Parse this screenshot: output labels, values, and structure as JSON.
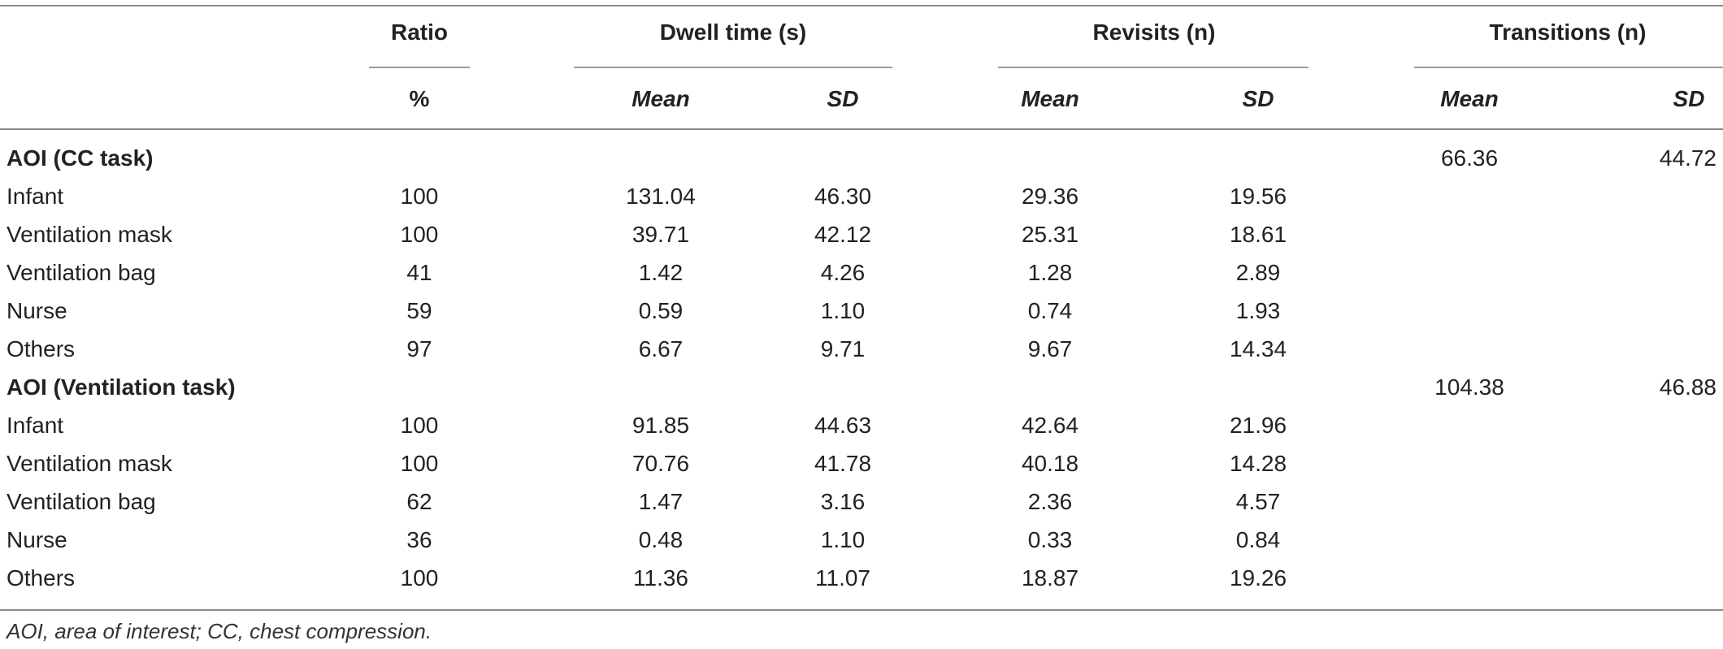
{
  "header": {
    "groups": [
      "Ratio",
      "Dwell time (s)",
      "Revisits (n)",
      "Transitions (n)"
    ],
    "subheaders": [
      "%",
      "Mean",
      "SD",
      "Mean",
      "SD",
      "Mean",
      "SD"
    ]
  },
  "sections": [
    {
      "title": "AOI (CC task)",
      "transitions": {
        "mean": "66.36",
        "sd": "44.72"
      },
      "rows": [
        {
          "label": "Infant",
          "ratio": "100",
          "dwell_mean": "131.04",
          "dwell_sd": "46.30",
          "revisits_mean": "29.36",
          "revisits_sd": "19.56"
        },
        {
          "label": "Ventilation mask",
          "ratio": "100",
          "dwell_mean": "39.71",
          "dwell_sd": "42.12",
          "revisits_mean": "25.31",
          "revisits_sd": "18.61"
        },
        {
          "label": "Ventilation bag",
          "ratio": "41",
          "dwell_mean": "1.42",
          "dwell_sd": "4.26",
          "revisits_mean": "1.28",
          "revisits_sd": "2.89"
        },
        {
          "label": "Nurse",
          "ratio": "59",
          "dwell_mean": "0.59",
          "dwell_sd": "1.10",
          "revisits_mean": "0.74",
          "revisits_sd": "1.93"
        },
        {
          "label": "Others",
          "ratio": "97",
          "dwell_mean": "6.67",
          "dwell_sd": "9.71",
          "revisits_mean": "9.67",
          "revisits_sd": "14.34"
        }
      ]
    },
    {
      "title": "AOI (Ventilation task)",
      "transitions": {
        "mean": "104.38",
        "sd": "46.88"
      },
      "rows": [
        {
          "label": "Infant",
          "ratio": "100",
          "dwell_mean": "91.85",
          "dwell_sd": "44.63",
          "revisits_mean": "42.64",
          "revisits_sd": "21.96"
        },
        {
          "label": "Ventilation mask",
          "ratio": "100",
          "dwell_mean": "70.76",
          "dwell_sd": "41.78",
          "revisits_mean": "40.18",
          "revisits_sd": "14.28"
        },
        {
          "label": "Ventilation bag",
          "ratio": "62",
          "dwell_mean": "1.47",
          "dwell_sd": "3.16",
          "revisits_mean": "2.36",
          "revisits_sd": "4.57"
        },
        {
          "label": "Nurse",
          "ratio": "36",
          "dwell_mean": "0.48",
          "dwell_sd": "1.10",
          "revisits_mean": "0.33",
          "revisits_sd": "0.84"
        },
        {
          "label": "Others",
          "ratio": "100",
          "dwell_mean": "11.36",
          "dwell_sd": "11.07",
          "revisits_mean": "18.87",
          "revisits_sd": "19.26"
        }
      ]
    }
  ],
  "footnote": "AOI, area of interest; CC, chest compression."
}
